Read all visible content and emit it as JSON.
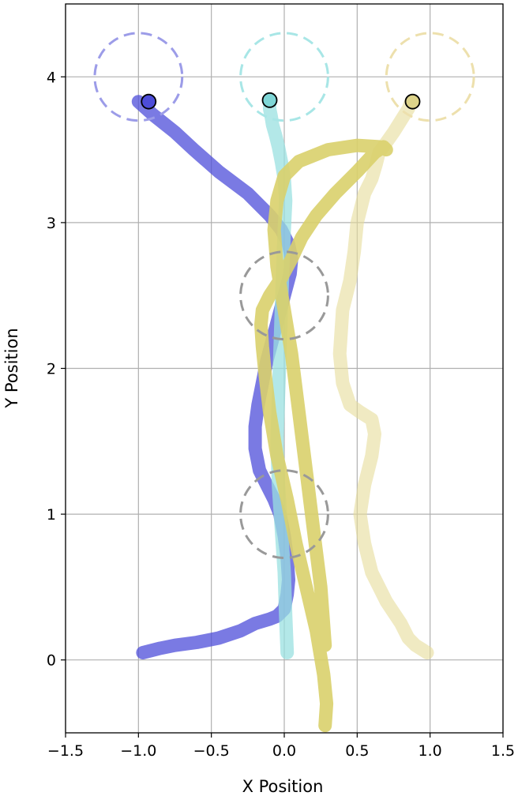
{
  "chart_data": {
    "type": "line",
    "title": "",
    "xlabel": "X Position",
    "ylabel": "Y Position",
    "xlim": [
      -1.5,
      1.5
    ],
    "ylim": [
      -0.5,
      4.5
    ],
    "xticks": [
      -1.5,
      -1.0,
      -0.5,
      0.0,
      0.5,
      1.0,
      1.5
    ],
    "xtick_labels": [
      "−1.5",
      "−1.0",
      "−0.5",
      "0.0",
      "0.5",
      "1.0",
      "1.5"
    ],
    "yticks": [
      0,
      1,
      2,
      3,
      4
    ],
    "ytick_labels": [
      "0",
      "1",
      "2",
      "3",
      "4"
    ],
    "grid": true,
    "legend": "none",
    "obstacles": [
      {
        "x": 0.0,
        "y": 2.5,
        "r": 0.3,
        "color": "#999999"
      },
      {
        "x": 0.0,
        "y": 1.0,
        "r": 0.3,
        "color": "#999999"
      }
    ],
    "goals": [
      {
        "x": -1.0,
        "y": 4.0,
        "r": 0.3,
        "color": "#9c9ce8"
      },
      {
        "x": 0.0,
        "y": 4.0,
        "r": 0.3,
        "color": "#a8e6e6"
      },
      {
        "x": 1.0,
        "y": 4.0,
        "r": 0.3,
        "color": "#ede0ad"
      }
    ],
    "series": [
      {
        "color": "#4d4dd9",
        "opacity": 0.75,
        "x": [
          -0.97,
          -0.85,
          -0.75,
          -0.6,
          -0.45,
          -0.3,
          -0.2,
          -0.1,
          -0.05,
          0.0,
          0.02,
          0.03,
          0.02,
          0.0,
          -0.03,
          -0.07,
          -0.12,
          -0.17,
          -0.2,
          -0.2,
          -0.18,
          -0.15,
          -0.12,
          -0.08,
          -0.04,
          0.0,
          0.04,
          0.05,
          0.03,
          -0.02,
          -0.1,
          -0.25,
          -0.45,
          -0.62,
          -0.75,
          -0.9,
          -1.0
        ],
        "y": [
          0.05,
          0.08,
          0.1,
          0.12,
          0.15,
          0.2,
          0.25,
          0.28,
          0.3,
          0.35,
          0.45,
          0.55,
          0.7,
          0.85,
          1.0,
          1.1,
          1.2,
          1.3,
          1.45,
          1.6,
          1.75,
          1.9,
          2.05,
          2.2,
          2.35,
          2.5,
          2.65,
          2.75,
          2.85,
          2.95,
          3.05,
          3.2,
          3.35,
          3.5,
          3.62,
          3.74,
          3.83
        ]
      },
      {
        "color": "#99e0e0",
        "opacity": 0.75,
        "x": [
          0.02,
          0.01,
          0.0,
          -0.02,
          -0.04,
          -0.05,
          -0.04,
          -0.03,
          -0.02,
          -0.01,
          0.0,
          0.01,
          0.0,
          -0.02,
          -0.04,
          -0.06,
          -0.08,
          -0.09,
          -0.1,
          -0.1
        ],
        "y": [
          0.05,
          0.3,
          0.6,
          0.9,
          1.2,
          1.5,
          1.8,
          2.1,
          2.4,
          2.7,
          2.95,
          3.15,
          3.3,
          3.42,
          3.52,
          3.6,
          3.67,
          3.73,
          3.78,
          3.83
        ]
      },
      {
        "color": "#e6dc99",
        "opacity": 0.6,
        "x": [
          0.98,
          0.9,
          0.85,
          0.8,
          0.7,
          0.6,
          0.55,
          0.52,
          0.55,
          0.6,
          0.62,
          0.6,
          0.52,
          0.45,
          0.4,
          0.38,
          0.4,
          0.45,
          0.48,
          0.5,
          0.55,
          0.6,
          0.63,
          0.65,
          0.7,
          0.75,
          0.8,
          0.85,
          0.87
        ],
        "y": [
          0.05,
          0.1,
          0.15,
          0.25,
          0.4,
          0.6,
          0.8,
          1.0,
          1.2,
          1.4,
          1.55,
          1.65,
          1.7,
          1.75,
          1.9,
          2.1,
          2.4,
          2.6,
          2.8,
          3.0,
          3.2,
          3.3,
          3.4,
          3.48,
          3.55,
          3.62,
          3.7,
          3.78,
          3.83
        ]
      },
      {
        "color": "#d9d06b",
        "opacity": 0.9,
        "x": [
          0.28,
          0.29,
          0.27,
          0.22,
          0.15,
          0.08,
          0.02,
          -0.05,
          -0.1,
          -0.13,
          -0.15,
          -0.16,
          -0.15,
          -0.1,
          -0.02,
          0.05,
          0.12,
          0.22,
          0.35,
          0.5,
          0.62,
          0.68,
          0.7,
          0.65,
          0.5,
          0.3,
          0.1,
          0.0,
          -0.05,
          -0.07,
          -0.05,
          0.0,
          0.05,
          0.1,
          0.15,
          0.2,
          0.25,
          0.28
        ],
        "y": [
          -0.45,
          -0.3,
          -0.1,
          0.2,
          0.5,
          0.8,
          1.1,
          1.4,
          1.7,
          1.95,
          2.15,
          2.3,
          2.4,
          2.5,
          2.62,
          2.75,
          2.9,
          3.05,
          3.2,
          3.35,
          3.48,
          3.52,
          3.5,
          3.52,
          3.53,
          3.5,
          3.42,
          3.32,
          3.15,
          2.95,
          2.7,
          2.4,
          2.1,
          1.7,
          1.3,
          0.9,
          0.5,
          0.1
        ]
      }
    ],
    "end_markers": [
      {
        "x": -0.93,
        "y": 3.83,
        "color": "#4d4dd9"
      },
      {
        "x": -0.1,
        "y": 3.84,
        "color": "#7fd6d6"
      },
      {
        "x": 0.88,
        "y": 3.83,
        "color": "#ddd38a"
      }
    ]
  }
}
